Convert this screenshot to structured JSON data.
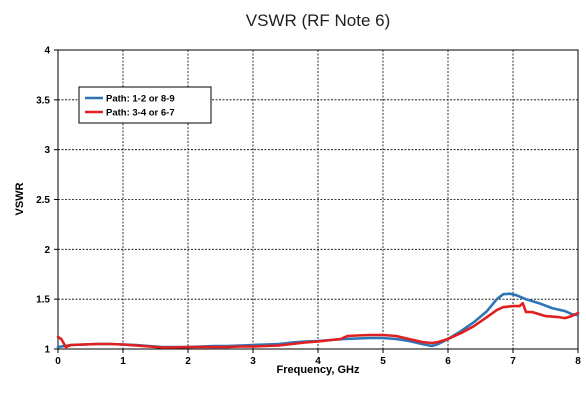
{
  "chart_data": {
    "type": "line",
    "title": "VSWR (RF Note 6)",
    "xlabel": "Frequency, GHz",
    "ylabel": "VSWR",
    "xlim": [
      0,
      8
    ],
    "ylim": [
      1,
      4
    ],
    "x_ticks": [
      "0",
      "1",
      "2",
      "3",
      "4",
      "5",
      "6",
      "7",
      "8"
    ],
    "y_ticks": [
      "1",
      "1.5",
      "2",
      "2.5",
      "3",
      "3.5",
      "4"
    ],
    "grid": true,
    "legend_position": "top-left",
    "series": [
      {
        "name": "Path: 1-2 or 8-9",
        "color": "#2e75b6",
        "points": [
          [
            0,
            1.02
          ],
          [
            0.1,
            1.03
          ],
          [
            0.2,
            1.04
          ],
          [
            0.4,
            1.045
          ],
          [
            0.6,
            1.05
          ],
          [
            0.8,
            1.05
          ],
          [
            1.0,
            1.045
          ],
          [
            1.2,
            1.04
          ],
          [
            1.4,
            1.03
          ],
          [
            1.6,
            1.02
          ],
          [
            1.8,
            1.02
          ],
          [
            2.0,
            1.02
          ],
          [
            2.2,
            1.025
          ],
          [
            2.4,
            1.03
          ],
          [
            2.6,
            1.03
          ],
          [
            2.8,
            1.035
          ],
          [
            3.0,
            1.04
          ],
          [
            3.2,
            1.045
          ],
          [
            3.4,
            1.05
          ],
          [
            3.6,
            1.065
          ],
          [
            3.8,
            1.075
          ],
          [
            4.0,
            1.08
          ],
          [
            4.2,
            1.09
          ],
          [
            4.4,
            1.1
          ],
          [
            4.6,
            1.105
          ],
          [
            4.8,
            1.11
          ],
          [
            5.0,
            1.11
          ],
          [
            5.2,
            1.1
          ],
          [
            5.4,
            1.08
          ],
          [
            5.6,
            1.05
          ],
          [
            5.75,
            1.03
          ],
          [
            5.85,
            1.05
          ],
          [
            6.0,
            1.1
          ],
          [
            6.2,
            1.18
          ],
          [
            6.4,
            1.27
          ],
          [
            6.6,
            1.38
          ],
          [
            6.75,
            1.5
          ],
          [
            6.85,
            1.55
          ],
          [
            6.95,
            1.555
          ],
          [
            7.05,
            1.54
          ],
          [
            7.2,
            1.5
          ],
          [
            7.4,
            1.46
          ],
          [
            7.6,
            1.41
          ],
          [
            7.8,
            1.38
          ],
          [
            7.9,
            1.35
          ],
          [
            8.0,
            1.34
          ]
        ]
      },
      {
        "name": "Path: 3-4 or 6-7",
        "color": "#e02020",
        "points": [
          [
            0,
            1.12
          ],
          [
            0.05,
            1.1
          ],
          [
            0.12,
            1.02
          ],
          [
            0.2,
            1.04
          ],
          [
            0.4,
            1.045
          ],
          [
            0.6,
            1.05
          ],
          [
            0.8,
            1.05
          ],
          [
            1.0,
            1.045
          ],
          [
            1.2,
            1.035
          ],
          [
            1.4,
            1.025
          ],
          [
            1.6,
            1.015
          ],
          [
            1.8,
            1.015
          ],
          [
            2.0,
            1.02
          ],
          [
            2.2,
            1.02
          ],
          [
            2.4,
            1.02
          ],
          [
            2.6,
            1.02
          ],
          [
            2.8,
            1.025
          ],
          [
            3.0,
            1.025
          ],
          [
            3.2,
            1.03
          ],
          [
            3.4,
            1.035
          ],
          [
            3.6,
            1.05
          ],
          [
            3.8,
            1.065
          ],
          [
            4.0,
            1.075
          ],
          [
            4.2,
            1.09
          ],
          [
            4.35,
            1.1
          ],
          [
            4.45,
            1.13
          ],
          [
            4.6,
            1.135
          ],
          [
            4.8,
            1.14
          ],
          [
            5.0,
            1.14
          ],
          [
            5.2,
            1.13
          ],
          [
            5.4,
            1.1
          ],
          [
            5.6,
            1.07
          ],
          [
            5.75,
            1.06
          ],
          [
            5.85,
            1.07
          ],
          [
            6.0,
            1.1
          ],
          [
            6.2,
            1.16
          ],
          [
            6.4,
            1.23
          ],
          [
            6.6,
            1.32
          ],
          [
            6.75,
            1.39
          ],
          [
            6.85,
            1.42
          ],
          [
            7.0,
            1.43
          ],
          [
            7.1,
            1.43
          ],
          [
            7.15,
            1.46
          ],
          [
            7.2,
            1.37
          ],
          [
            7.3,
            1.37
          ],
          [
            7.4,
            1.35
          ],
          [
            7.5,
            1.33
          ],
          [
            7.6,
            1.325
          ],
          [
            7.7,
            1.32
          ],
          [
            7.8,
            1.31
          ],
          [
            7.9,
            1.33
          ],
          [
            8.0,
            1.36
          ]
        ]
      }
    ]
  }
}
